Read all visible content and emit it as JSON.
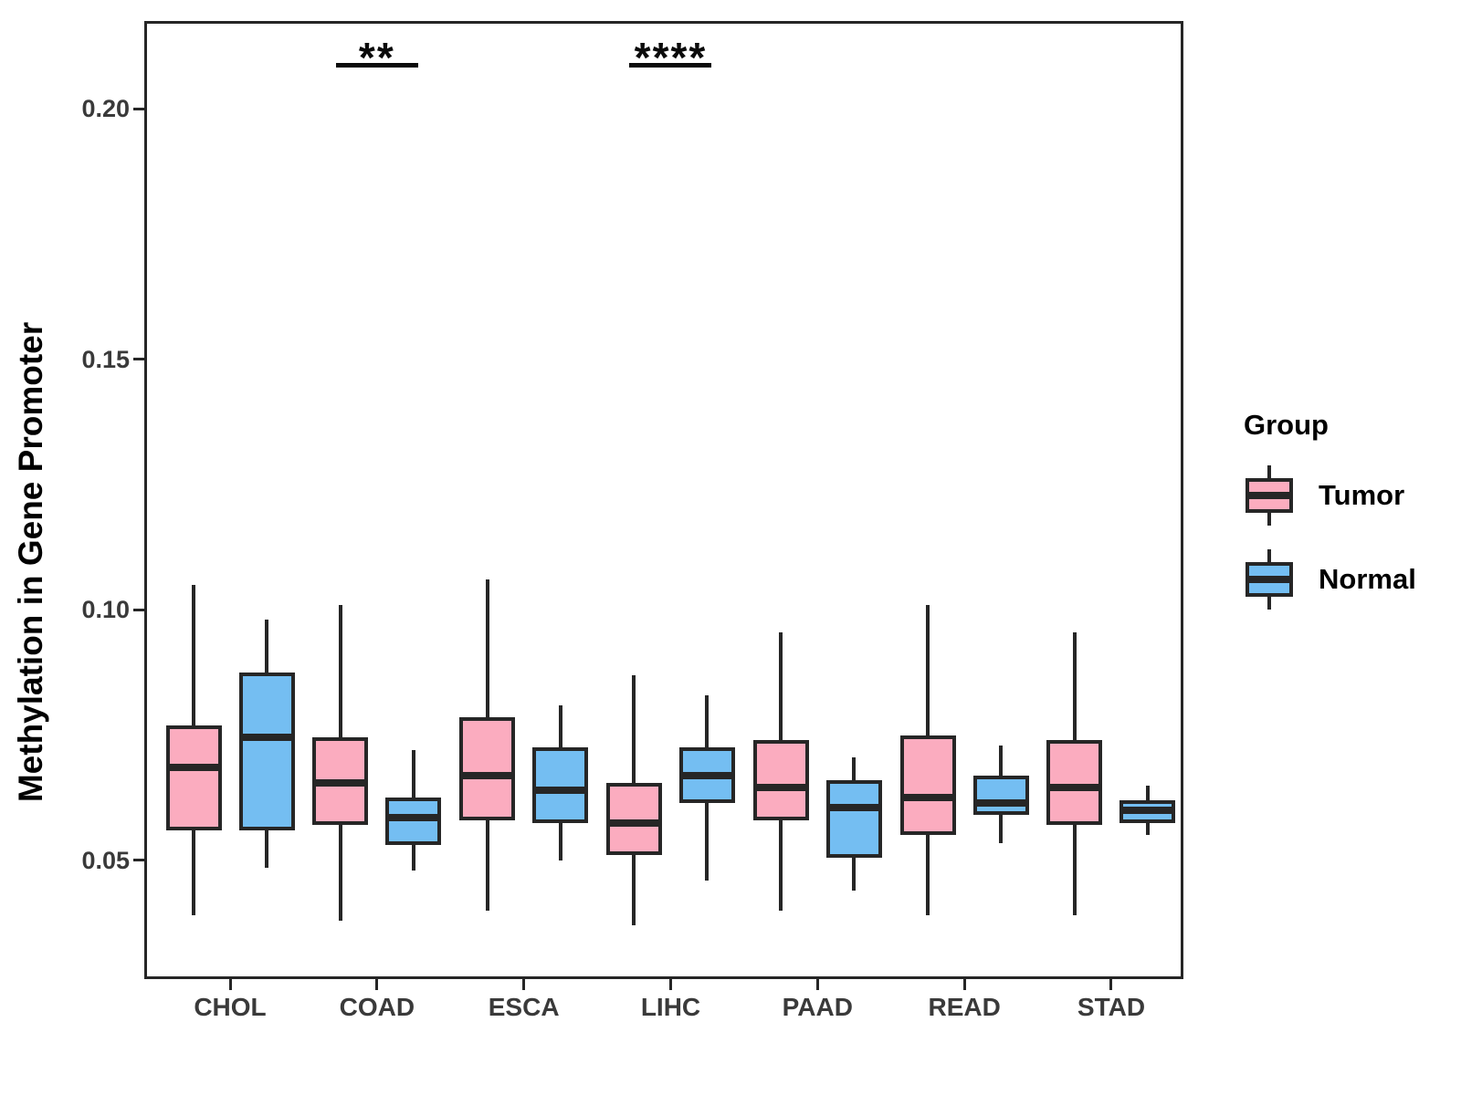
{
  "figure": {
    "y_axis_title": "Methylation in Gene Promoter",
    "legend": {
      "title": "Group",
      "items": [
        {
          "label": "Tumor",
          "color": "#FBACBF"
        },
        {
          "label": "Normal",
          "color": "#74BEF2"
        }
      ]
    },
    "colors": {
      "tumor_fill": "#FBACBF",
      "normal_fill": "#74BEF2",
      "box_border": "#262626",
      "axis_text": "#3a3a3a"
    }
  },
  "chart_data": {
    "type": "boxplot",
    "title": "",
    "xlabel": "",
    "ylabel": "Methylation in Gene Promoter",
    "categories": [
      "CHOL",
      "COAD",
      "ESCA",
      "LIHC",
      "PAAD",
      "READ",
      "STAD"
    ],
    "y_ticks": [
      0.05,
      0.1,
      0.15,
      0.2
    ],
    "ylim": [
      0.0265,
      0.2175
    ],
    "grid": false,
    "legend_position": "right",
    "series": [
      {
        "name": "Tumor",
        "color": "#FBACBF",
        "boxes": [
          {
            "whisker_low": 0.039,
            "q1": 0.056,
            "median": 0.0685,
            "q3": 0.077,
            "whisker_high": 0.105
          },
          {
            "whisker_low": 0.038,
            "q1": 0.057,
            "median": 0.0655,
            "q3": 0.0745,
            "whisker_high": 0.101
          },
          {
            "whisker_low": 0.04,
            "q1": 0.058,
            "median": 0.067,
            "q3": 0.0785,
            "whisker_high": 0.106
          },
          {
            "whisker_low": 0.037,
            "q1": 0.051,
            "median": 0.0575,
            "q3": 0.0655,
            "whisker_high": 0.087
          },
          {
            "whisker_low": 0.04,
            "q1": 0.058,
            "median": 0.0645,
            "q3": 0.074,
            "whisker_high": 0.0955
          },
          {
            "whisker_low": 0.039,
            "q1": 0.055,
            "median": 0.0625,
            "q3": 0.075,
            "whisker_high": 0.101
          },
          {
            "whisker_low": 0.039,
            "q1": 0.057,
            "median": 0.0645,
            "q3": 0.074,
            "whisker_high": 0.0955
          }
        ]
      },
      {
        "name": "Normal",
        "color": "#74BEF2",
        "boxes": [
          {
            "whisker_low": 0.0485,
            "q1": 0.056,
            "median": 0.0745,
            "q3": 0.0875,
            "whisker_high": 0.098
          },
          {
            "whisker_low": 0.048,
            "q1": 0.053,
            "median": 0.0585,
            "q3": 0.0625,
            "whisker_high": 0.072
          },
          {
            "whisker_low": 0.05,
            "q1": 0.0575,
            "median": 0.064,
            "q3": 0.0725,
            "whisker_high": 0.081
          },
          {
            "whisker_low": 0.046,
            "q1": 0.0615,
            "median": 0.067,
            "q3": 0.0725,
            "whisker_high": 0.083
          },
          {
            "whisker_low": 0.044,
            "q1": 0.0505,
            "median": 0.0605,
            "q3": 0.066,
            "whisker_high": 0.0705
          },
          {
            "whisker_low": 0.0535,
            "q1": 0.059,
            "median": 0.0615,
            "q3": 0.067,
            "whisker_high": 0.073
          },
          {
            "whisker_low": 0.055,
            "q1": 0.0575,
            "median": 0.06,
            "q3": 0.062,
            "whisker_high": 0.065
          }
        ]
      }
    ],
    "annotations": [
      {
        "category": "COAD",
        "label": "**"
      },
      {
        "category": "LIHC",
        "label": "****"
      }
    ]
  }
}
